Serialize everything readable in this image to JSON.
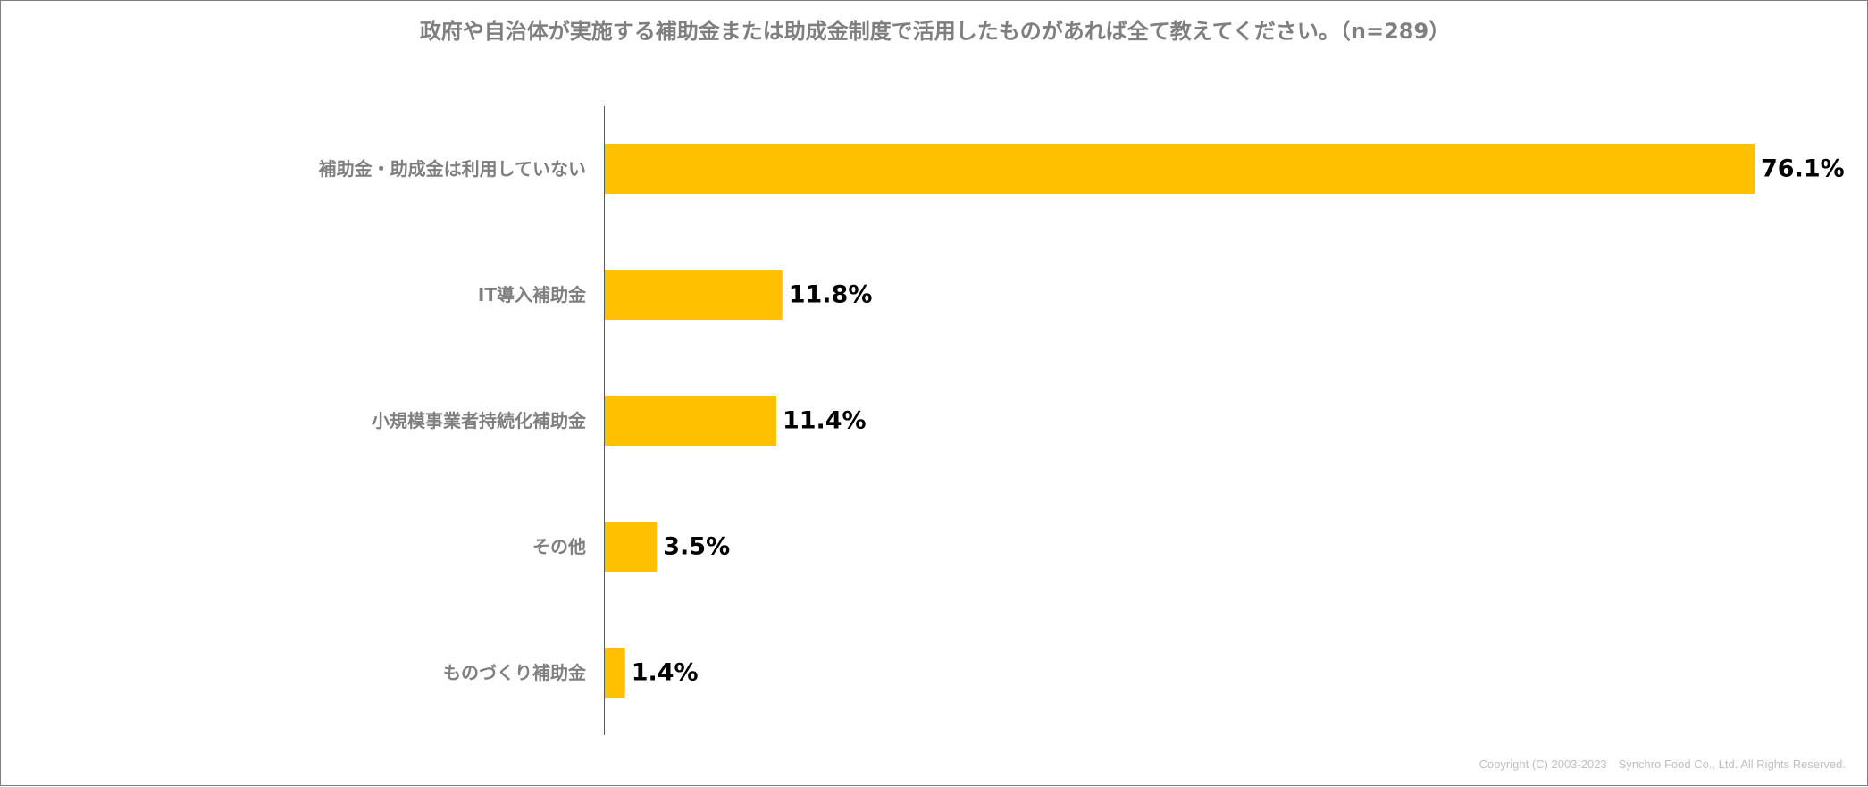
{
  "chart_data": {
    "type": "bar",
    "orientation": "horizontal",
    "title": "政府や自治体が実施する補助金または助成金制度で活用したものがあれば全て教えてください。（n=289）",
    "categories": [
      "補助金・助成金は利用していない",
      "IT導入補助金",
      "小規模事業者持続化補助金",
      "その他",
      "ものづくり補助金"
    ],
    "values": [
      76.1,
      11.8,
      11.4,
      3.5,
      1.4
    ],
    "value_labels": [
      "76.1%",
      "11.8%",
      "11.4%",
      "3.5%",
      "1.4%"
    ],
    "unit": "%",
    "xlim": [
      0,
      76.1
    ],
    "bar_color": "#FFC000",
    "grid": false,
    "legend": "none"
  },
  "footer": {
    "copyright": "Copyright (C) 2003-2023　Synchro Food Co., Ltd. All Rights Reserved."
  }
}
